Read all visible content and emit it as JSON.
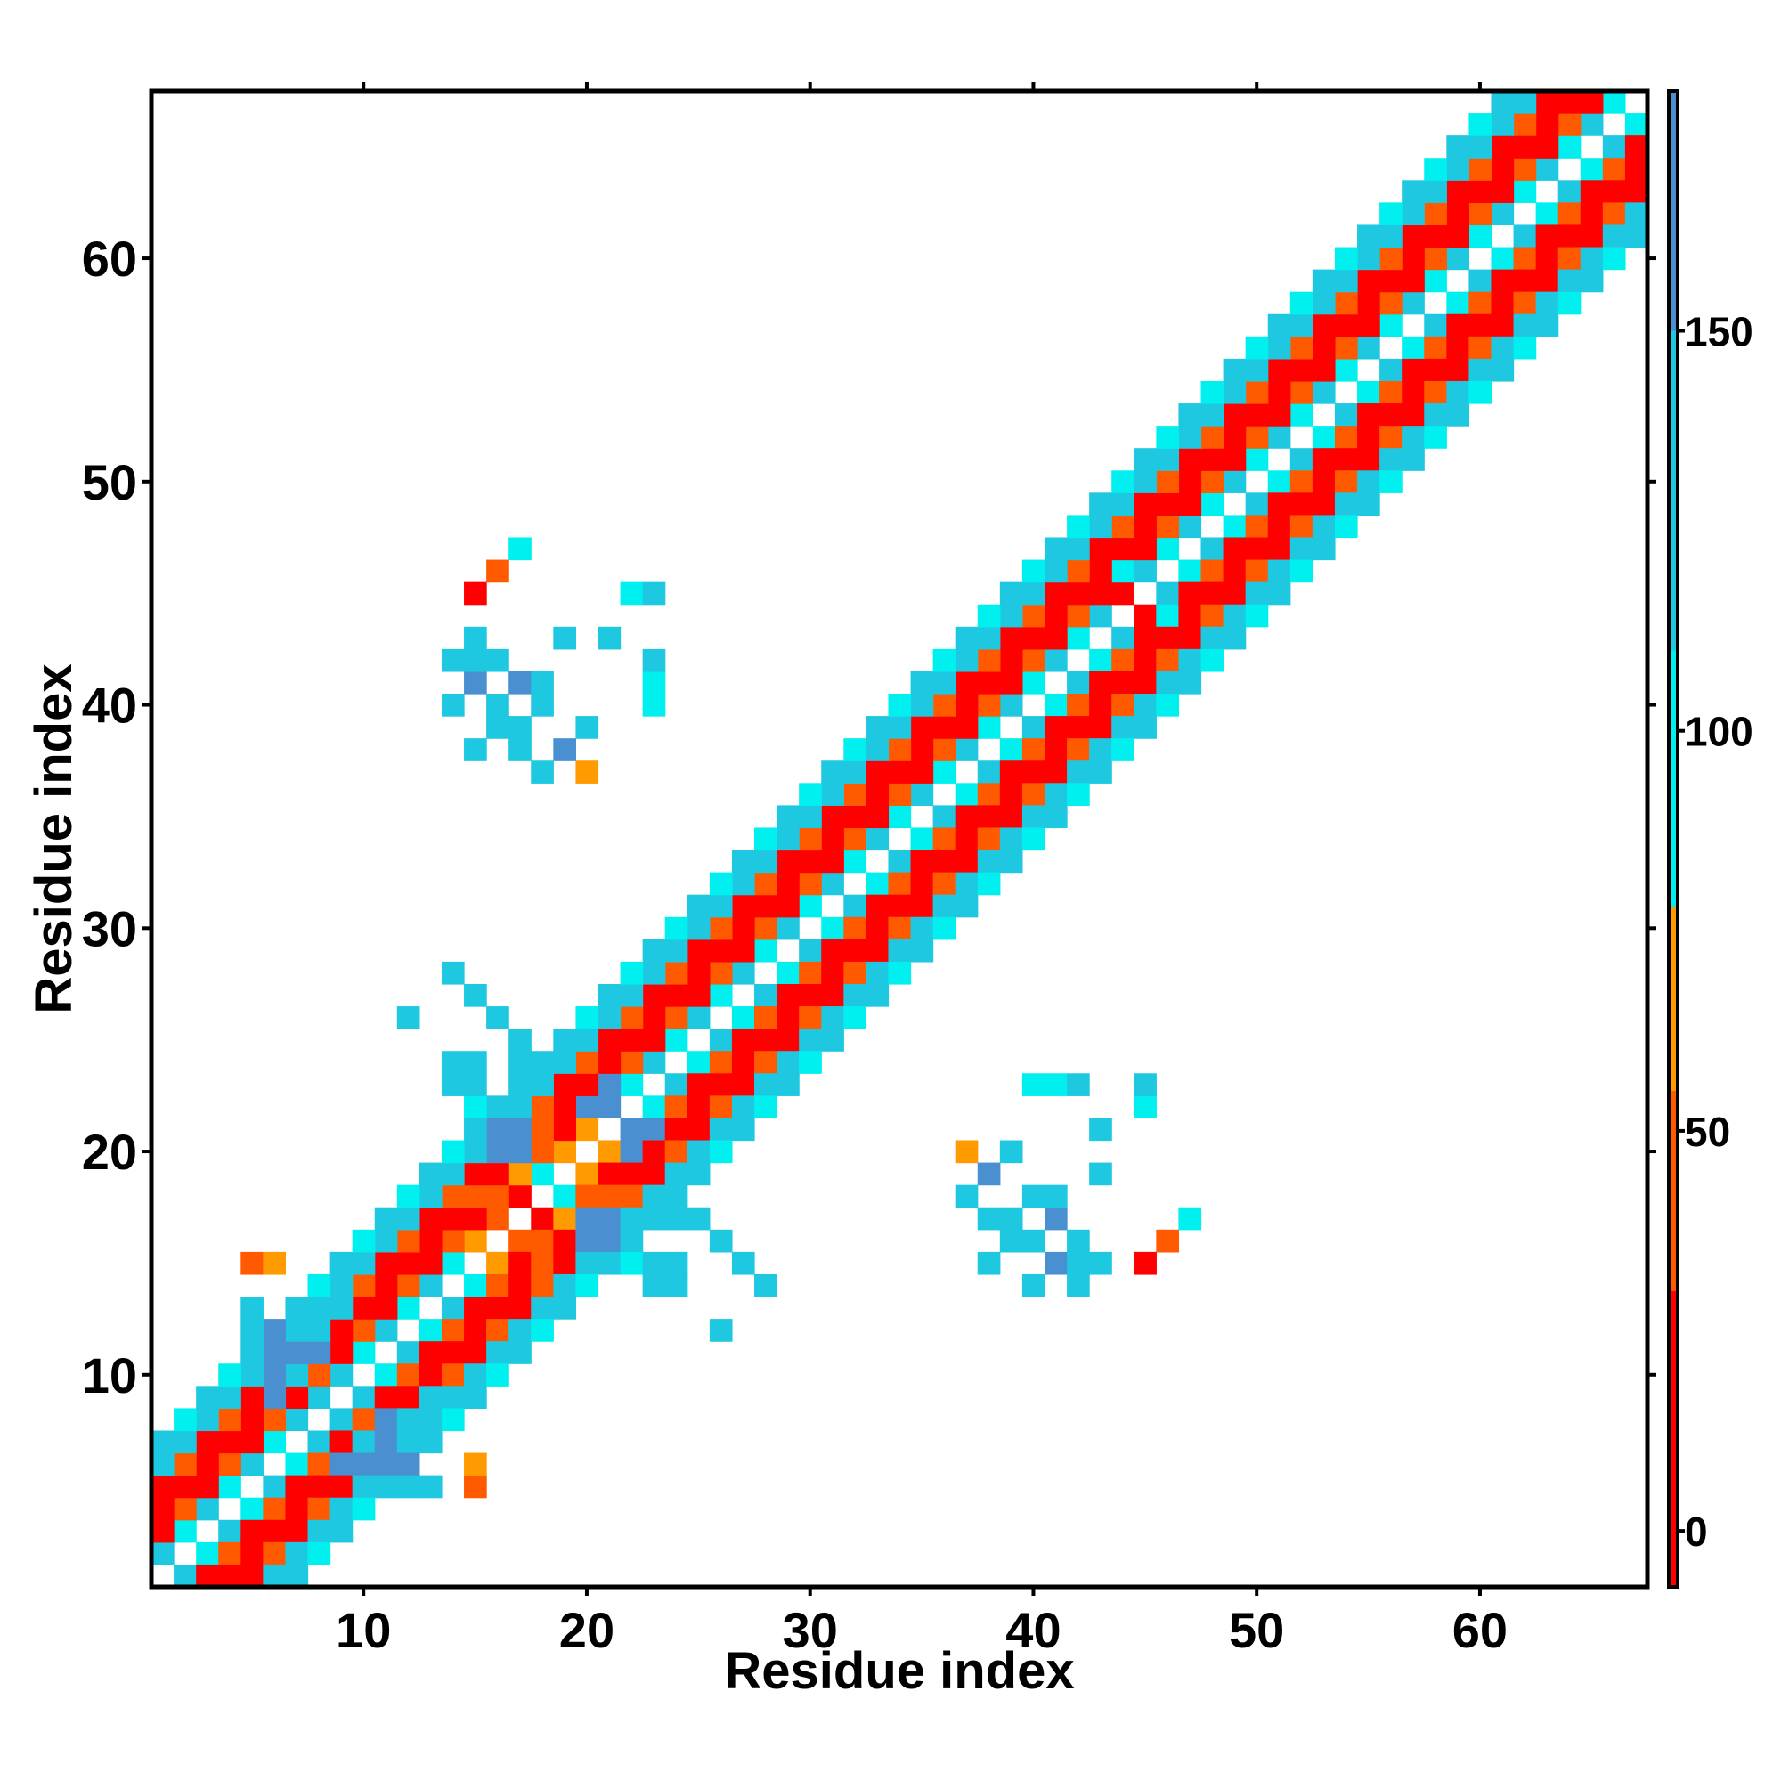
{
  "chart_data": {
    "type": "heatmap",
    "title": "",
    "xlabel": "Residue index",
    "ylabel": "Residue index",
    "xlim": [
      0.5,
      67.5
    ],
    "ylim": [
      0.5,
      67.5
    ],
    "x_ticks": [
      10,
      20,
      30,
      40,
      50,
      60
    ],
    "y_ticks": [
      10,
      20,
      30,
      40,
      50,
      60
    ],
    "x_tick_labels": [
      "10",
      "20",
      "30",
      "40",
      "50",
      "60"
    ],
    "y_tick_labels": [
      "10",
      "20",
      "30",
      "40",
      "50",
      "60"
    ],
    "colorbar": {
      "ticks": [
        0,
        50,
        100,
        150
      ],
      "tick_labels": [
        "0",
        "50",
        "100",
        "150"
      ],
      "range": [
        -7,
        180
      ],
      "segments": [
        {
          "from": -7,
          "to": 30,
          "color": "#ff0000"
        },
        {
          "from": 30,
          "to": 55,
          "color": "#ff5a00"
        },
        {
          "from": 55,
          "to": 78,
          "color": "#ff9a00"
        },
        {
          "from": 78,
          "to": 110,
          "color": "#00f0f0"
        },
        {
          "from": 110,
          "to": 150,
          "color": "#1ec8e0"
        },
        {
          "from": 150,
          "to": 180,
          "color": "#4a90d0"
        }
      ]
    },
    "bands": [
      {
        "offset": 1,
        "value": 100
      },
      {
        "offset": 2,
        "value": 45
      },
      {
        "offset": 3,
        "value": 20
      },
      {
        "offset": 4,
        "value": 45
      },
      {
        "offset": 5,
        "value": 115
      },
      {
        "offset": 6,
        "value": 100
      }
    ],
    "values": [
      [
        12,
        6,
        8
      ],
      [
        15,
        5,
        45
      ],
      [
        15,
        6,
        63
      ],
      [
        16,
        15,
        60
      ],
      [
        16,
        16,
        45
      ],
      [
        17,
        15,
        20
      ],
      [
        17,
        16,
        30
      ],
      [
        18,
        15,
        45
      ],
      [
        18,
        17,
        20
      ],
      [
        18,
        18,
        35
      ],
      [
        19,
        15,
        10
      ],
      [
        19,
        16,
        20
      ],
      [
        19,
        17,
        65
      ],
      [
        20,
        18,
        45
      ],
      [
        20,
        19,
        70
      ],
      [
        21,
        18,
        48
      ],
      [
        21,
        20,
        65
      ],
      [
        22,
        15,
        100
      ],
      [
        22,
        16,
        140
      ],
      [
        20,
        16,
        165
      ],
      [
        21,
        17,
        165
      ],
      [
        21,
        16,
        150
      ],
      [
        20,
        17,
        160
      ],
      [
        23,
        14,
        120
      ],
      [
        23,
        15,
        140
      ],
      [
        24,
        15,
        125
      ],
      [
        24,
        14,
        120
      ],
      [
        26,
        12,
        110
      ],
      [
        27,
        15,
        120
      ],
      [
        26,
        16,
        100
      ],
      [
        25,
        17,
        150
      ],
      [
        20,
        22,
        165
      ],
      [
        21,
        22,
        165
      ],
      [
        21,
        23,
        150
      ],
      [
        18,
        24,
        130
      ],
      [
        17,
        24,
        125
      ],
      [
        17,
        25,
        130
      ],
      [
        16,
        26,
        140
      ],
      [
        15,
        27,
        110
      ],
      [
        14,
        28,
        110
      ],
      [
        13,
        9,
        110
      ],
      [
        12,
        7,
        120
      ],
      [
        11,
        8,
        155
      ],
      [
        10,
        7,
        165
      ],
      [
        9,
        6,
        150
      ],
      [
        12,
        8,
        140
      ],
      [
        10,
        6,
        170
      ],
      [
        11,
        6,
        160
      ],
      [
        8,
        9,
        110
      ],
      [
        7,
        10,
        145
      ],
      [
        7,
        11,
        150
      ],
      [
        6,
        12,
        160
      ],
      [
        6,
        11,
        165
      ],
      [
        5,
        12,
        140
      ],
      [
        5,
        13,
        115
      ],
      [
        7,
        12,
        120
      ],
      [
        17,
        39,
        110
      ],
      [
        18,
        40,
        120
      ],
      [
        17,
        41,
        150
      ],
      [
        16,
        42,
        130
      ],
      [
        15,
        43,
        120
      ],
      [
        14,
        42,
        110
      ],
      [
        15,
        45,
        20
      ],
      [
        16,
        46,
        45
      ],
      [
        17,
        47,
        100
      ],
      [
        20,
        37,
        65
      ],
      [
        19,
        38,
        45
      ],
      [
        18,
        37,
        120
      ],
      [
        22,
        45,
        95
      ],
      [
        23,
        45,
        120
      ],
      [
        23,
        40,
        90
      ],
      [
        23,
        41,
        90
      ],
      [
        23,
        42,
        120
      ],
      [
        39,
        17,
        120
      ],
      [
        40,
        16,
        140
      ],
      [
        41,
        15,
        150
      ],
      [
        42,
        16,
        120
      ],
      [
        40,
        18,
        130
      ],
      [
        38,
        19,
        155
      ],
      [
        39,
        20,
        140
      ],
      [
        41,
        18,
        130
      ],
      [
        43,
        19,
        110
      ],
      [
        43,
        21,
        110
      ],
      [
        37,
        18,
        120
      ],
      [
        38,
        17,
        110
      ],
      [
        39,
        16,
        120
      ],
      [
        38,
        15,
        130
      ],
      [
        40,
        14,
        120
      ],
      [
        42,
        15,
        110
      ],
      [
        44,
        45,
        25
      ],
      [
        45,
        45,
        45
      ],
      [
        44,
        46,
        55
      ],
      [
        46,
        46,
        100
      ],
      [
        47,
        47,
        110
      ],
      [
        46,
        44,
        105
      ]
    ]
  }
}
